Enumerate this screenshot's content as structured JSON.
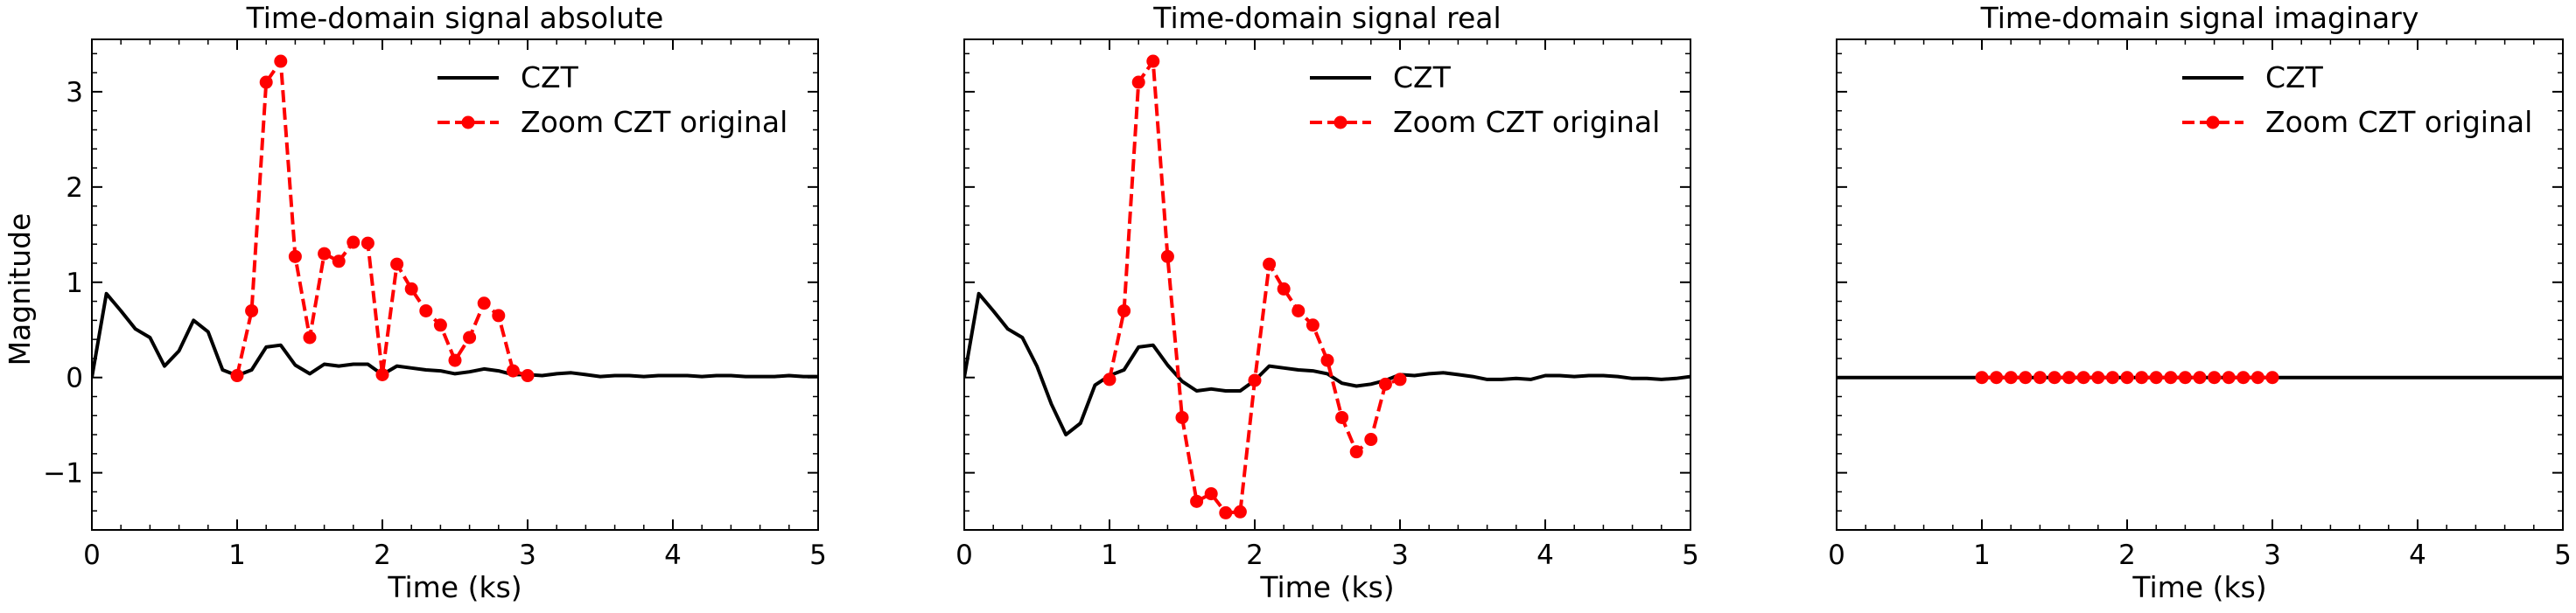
{
  "chart_data": {
    "type": "line",
    "shared_y": true,
    "ylabel": "Magnitude",
    "ylim": [
      -1.6,
      3.55
    ],
    "yticks": [
      -1,
      0,
      1,
      2,
      3
    ],
    "yticks_labels": [
      "−1",
      "0",
      "1",
      "2",
      "3"
    ],
    "xlim": [
      0,
      5
    ],
    "xticks": [
      0,
      1,
      2,
      3,
      4,
      5
    ],
    "xticks_labels": [
      "0",
      "1",
      "2",
      "3",
      "4",
      "5"
    ],
    "legend_position": "top-right",
    "colors": {
      "czt": "#000000",
      "zoom": "#ff0000"
    },
    "panels": [
      {
        "title": "Time-domain signal absolute",
        "xlabel": "Time (ks)",
        "series": [
          {
            "name": "CZT",
            "style": "solid",
            "x": [
              0,
              0.1,
              0.2,
              0.3,
              0.4,
              0.5,
              0.6,
              0.7,
              0.8,
              0.9,
              1.0,
              1.1,
              1.2,
              1.3,
              1.4,
              1.5,
              1.6,
              1.7,
              1.8,
              1.9,
              2.0,
              2.1,
              2.2,
              2.3,
              2.4,
              2.5,
              2.6,
              2.7,
              2.8,
              2.9,
              3.0,
              3.1,
              3.2,
              3.3,
              3.4,
              3.5,
              3.6,
              3.7,
              3.8,
              3.9,
              4.0,
              4.1,
              4.2,
              4.3,
              4.4,
              4.5,
              4.6,
              4.7,
              4.8,
              4.9,
              5.0
            ],
            "y": [
              0,
              0.88,
              0.7,
              0.51,
              0.42,
              0.12,
              0.28,
              0.6,
              0.48,
              0.08,
              0.02,
              0.08,
              0.32,
              0.34,
              0.13,
              0.04,
              0.14,
              0.12,
              0.14,
              0.14,
              0.03,
              0.12,
              0.1,
              0.08,
              0.07,
              0.04,
              0.06,
              0.09,
              0.07,
              0.03,
              0.03,
              0.02,
              0.04,
              0.05,
              0.03,
              0.01,
              0.02,
              0.02,
              0.01,
              0.02,
              0.02,
              0.02,
              0.01,
              0.02,
              0.02,
              0.01,
              0.01,
              0.01,
              0.02,
              0.01,
              0.01
            ]
          },
          {
            "name": "Zoom CZT original",
            "style": "dashed-markers",
            "x": [
              1.0,
              1.1,
              1.2,
              1.3,
              1.4,
              1.5,
              1.6,
              1.7,
              1.8,
              1.9,
              2.0,
              2.1,
              2.2,
              2.3,
              2.4,
              2.5,
              2.6,
              2.7,
              2.8,
              2.9,
              3.0
            ],
            "y": [
              0.02,
              0.7,
              3.1,
              3.32,
              1.27,
              0.42,
              1.3,
              1.22,
              1.42,
              1.41,
              0.03,
              1.19,
              0.93,
              0.7,
              0.55,
              0.18,
              0.42,
              0.78,
              0.65,
              0.07,
              0.02
            ]
          }
        ]
      },
      {
        "title": "Time-domain signal real",
        "xlabel": "Time (ks)",
        "series": [
          {
            "name": "CZT",
            "style": "solid",
            "x": [
              0,
              0.1,
              0.2,
              0.3,
              0.4,
              0.5,
              0.6,
              0.7,
              0.8,
              0.9,
              1.0,
              1.1,
              1.2,
              1.3,
              1.4,
              1.5,
              1.6,
              1.7,
              1.8,
              1.9,
              2.0,
              2.1,
              2.2,
              2.3,
              2.4,
              2.5,
              2.6,
              2.7,
              2.8,
              2.9,
              3.0,
              3.1,
              3.2,
              3.3,
              3.4,
              3.5,
              3.6,
              3.7,
              3.8,
              3.9,
              4.0,
              4.1,
              4.2,
              4.3,
              4.4,
              4.5,
              4.6,
              4.7,
              4.8,
              4.9,
              5.0
            ],
            "y": [
              0,
              0.88,
              0.7,
              0.51,
              0.42,
              0.12,
              -0.28,
              -0.6,
              -0.48,
              -0.08,
              0.02,
              0.08,
              0.32,
              0.34,
              0.13,
              -0.04,
              -0.14,
              -0.12,
              -0.14,
              -0.14,
              -0.03,
              0.12,
              0.1,
              0.08,
              0.07,
              0.04,
              -0.06,
              -0.09,
              -0.07,
              -0.03,
              0.03,
              0.02,
              0.04,
              0.05,
              0.03,
              0.01,
              -0.02,
              -0.02,
              -0.01,
              -0.02,
              0.02,
              0.02,
              0.01,
              0.02,
              0.02,
              0.01,
              -0.01,
              -0.01,
              -0.02,
              -0.01,
              0.01
            ]
          },
          {
            "name": "Zoom CZT original",
            "style": "dashed-markers",
            "x": [
              1.0,
              1.1,
              1.2,
              1.3,
              1.4,
              1.5,
              1.6,
              1.7,
              1.8,
              1.9,
              2.0,
              2.1,
              2.2,
              2.3,
              2.4,
              2.5,
              2.6,
              2.7,
              2.8,
              2.9,
              3.0
            ],
            "y": [
              -0.02,
              0.7,
              3.1,
              3.32,
              1.27,
              -0.42,
              -1.3,
              -1.22,
              -1.42,
              -1.41,
              -0.03,
              1.19,
              0.93,
              0.7,
              0.55,
              0.18,
              -0.42,
              -0.78,
              -0.65,
              -0.07,
              -0.02
            ]
          }
        ]
      },
      {
        "title": "Time-domain signal imaginary",
        "xlabel": "Time (ks)",
        "series": [
          {
            "name": "CZT",
            "style": "solid",
            "x": [
              0,
              5
            ],
            "y": [
              0,
              0
            ]
          },
          {
            "name": "Zoom CZT original",
            "style": "dashed-markers",
            "x": [
              1.0,
              1.1,
              1.2,
              1.3,
              1.4,
              1.5,
              1.6,
              1.7,
              1.8,
              1.9,
              2.0,
              2.1,
              2.2,
              2.3,
              2.4,
              2.5,
              2.6,
              2.7,
              2.8,
              2.9,
              3.0
            ],
            "y": [
              0,
              0,
              0,
              0,
              0,
              0,
              0,
              0,
              0,
              0,
              0,
              0,
              0,
              0,
              0,
              0,
              0,
              0,
              0,
              0,
              0
            ]
          }
        ]
      }
    ]
  }
}
